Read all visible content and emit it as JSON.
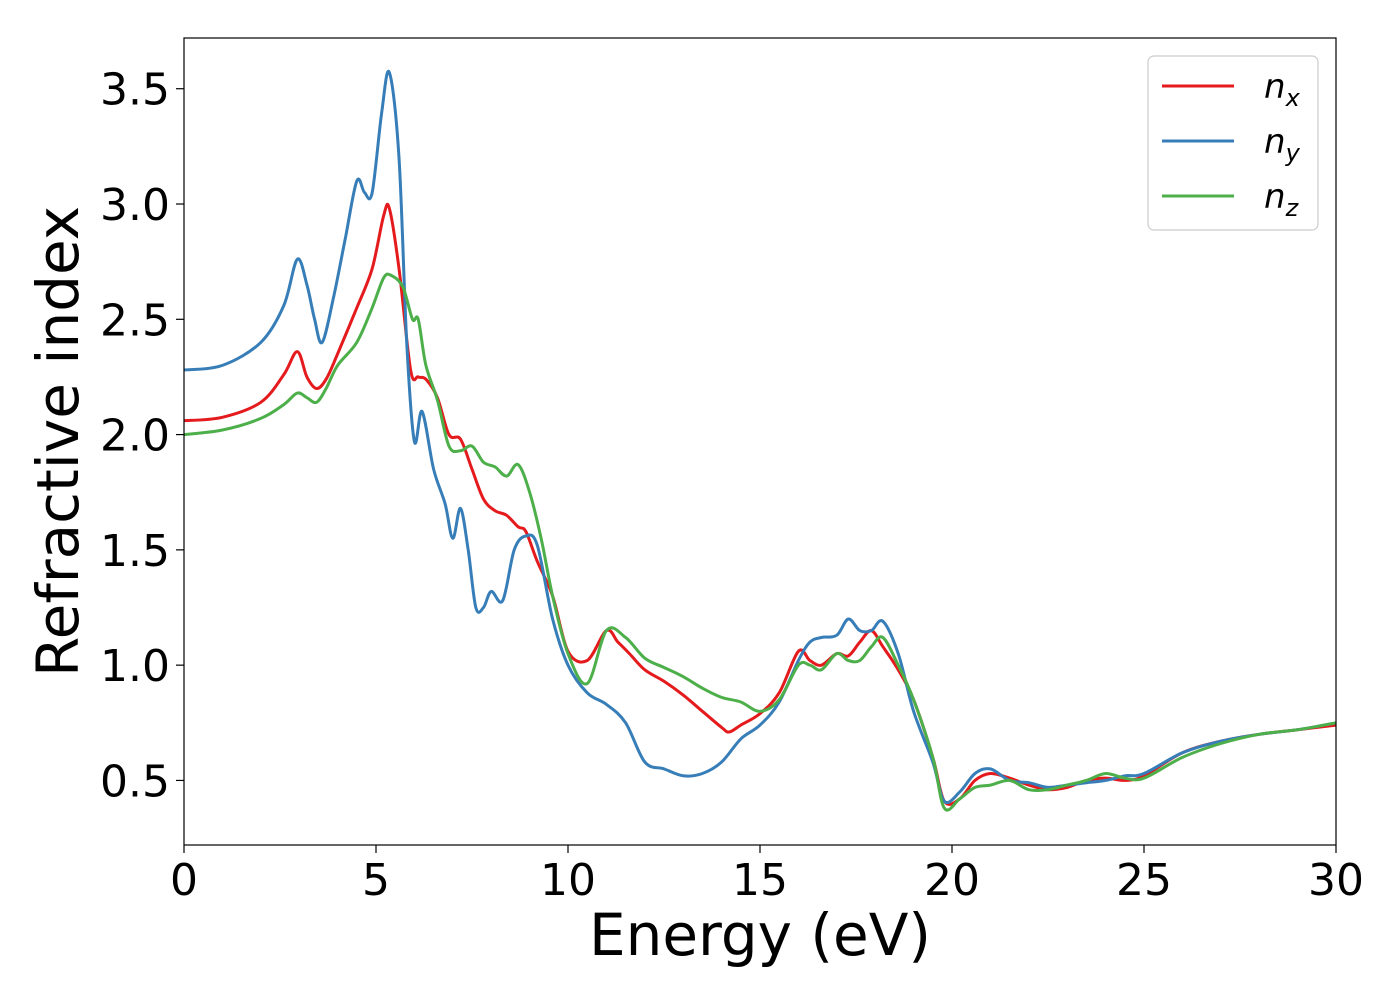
{
  "chart_data": {
    "type": "line",
    "title": "",
    "xlabel": "Energy (eV)",
    "ylabel": "Refractive index",
    "xlim": [
      0,
      30
    ],
    "ylim": [
      0.22,
      3.72
    ],
    "xticks": [
      0,
      5,
      10,
      15,
      20,
      25,
      30
    ],
    "xtick_labels": [
      "0",
      "5",
      "10",
      "15",
      "20",
      "25",
      "30"
    ],
    "yticks": [
      0.5,
      1.0,
      1.5,
      2.0,
      2.5,
      3.0,
      3.5
    ],
    "ytick_labels": [
      "0.5",
      "1.0",
      "1.5",
      "2.0",
      "2.5",
      "3.0",
      "3.5"
    ],
    "grid": false,
    "legend_position": "top-right",
    "series": [
      {
        "name": "n",
        "subscript": "x",
        "color": "#e41a1c",
        "x": [
          0,
          1,
          2,
          2.6,
          2.95,
          3.2,
          3.45,
          3.7,
          4.0,
          4.5,
          4.9,
          5.2,
          5.35,
          5.6,
          5.9,
          6.1,
          6.3,
          6.6,
          6.9,
          7.2,
          7.5,
          7.8,
          8.1,
          8.4,
          8.7,
          8.9,
          9.2,
          9.6,
          10,
          10.5,
          11,
          11.3,
          11.6,
          12,
          12.5,
          13,
          13.5,
          14,
          14.2,
          14.5,
          15,
          15.5,
          16,
          16.3,
          16.6,
          17,
          17.3,
          17.6,
          17.9,
          18.2,
          18.6,
          19,
          19.5,
          19.8,
          20.2,
          20.6,
          21,
          21.5,
          22,
          22.5,
          23,
          23.5,
          24,
          24.5,
          25,
          26,
          27,
          28,
          29,
          30
        ],
        "y": [
          2.06,
          2.075,
          2.14,
          2.26,
          2.36,
          2.25,
          2.2,
          2.24,
          2.35,
          2.55,
          2.72,
          2.95,
          2.98,
          2.72,
          2.28,
          2.25,
          2.24,
          2.16,
          2.0,
          1.98,
          1.85,
          1.72,
          1.67,
          1.65,
          1.6,
          1.58,
          1.45,
          1.3,
          1.06,
          1.02,
          1.15,
          1.1,
          1.05,
          0.98,
          0.93,
          0.87,
          0.8,
          0.73,
          0.71,
          0.74,
          0.79,
          0.88,
          1.06,
          1.02,
          1.0,
          1.05,
          1.04,
          1.1,
          1.15,
          1.08,
          0.98,
          0.85,
          0.6,
          0.41,
          0.42,
          0.5,
          0.53,
          0.51,
          0.48,
          0.46,
          0.47,
          0.5,
          0.51,
          0.5,
          0.52,
          0.62,
          0.67,
          0.7,
          0.72,
          0.74
        ]
      },
      {
        "name": "n",
        "subscript": "y",
        "color": "#377eb8",
        "x": [
          0,
          1,
          2,
          2.6,
          2.95,
          3.2,
          3.4,
          3.6,
          3.9,
          4.2,
          4.5,
          4.7,
          4.9,
          5.15,
          5.35,
          5.6,
          5.8,
          6.0,
          6.2,
          6.5,
          6.8,
          7.0,
          7.2,
          7.4,
          7.6,
          7.8,
          8.0,
          8.3,
          8.6,
          8.9,
          9.2,
          9.6,
          10,
          10.5,
          11,
          11.5,
          12,
          12.5,
          13,
          13.5,
          14,
          14.5,
          15,
          15.5,
          16,
          16.3,
          16.6,
          17,
          17.3,
          17.6,
          17.9,
          18.2,
          18.6,
          19,
          19.5,
          19.8,
          20.2,
          20.6,
          21,
          21.5,
          22,
          22.5,
          23,
          23.5,
          24,
          24.5,
          25,
          26,
          27,
          28,
          29,
          30
        ],
        "y": [
          2.28,
          2.3,
          2.4,
          2.56,
          2.76,
          2.65,
          2.5,
          2.4,
          2.6,
          2.85,
          3.1,
          3.05,
          3.05,
          3.4,
          3.57,
          3.2,
          2.4,
          1.97,
          2.1,
          1.85,
          1.7,
          1.55,
          1.68,
          1.5,
          1.25,
          1.25,
          1.32,
          1.28,
          1.5,
          1.56,
          1.52,
          1.2,
          1.0,
          0.88,
          0.83,
          0.75,
          0.58,
          0.55,
          0.52,
          0.53,
          0.58,
          0.68,
          0.74,
          0.84,
          1.02,
          1.1,
          1.12,
          1.13,
          1.2,
          1.15,
          1.15,
          1.19,
          1.05,
          0.8,
          0.58,
          0.41,
          0.45,
          0.53,
          0.55,
          0.5,
          0.49,
          0.47,
          0.48,
          0.49,
          0.5,
          0.52,
          0.53,
          0.62,
          0.67,
          0.7,
          0.72,
          0.75
        ]
      },
      {
        "name": "n",
        "subscript": "z",
        "color": "#4daf4a",
        "x": [
          0,
          1,
          2,
          2.6,
          2.95,
          3.2,
          3.45,
          3.7,
          4.0,
          4.5,
          4.9,
          5.2,
          5.4,
          5.7,
          5.95,
          6.1,
          6.3,
          6.6,
          6.9,
          7.2,
          7.5,
          7.8,
          8.1,
          8.4,
          8.7,
          9.0,
          9.3,
          9.6,
          10,
          10.5,
          11,
          11.5,
          12,
          12.5,
          13,
          13.5,
          14,
          14.5,
          15,
          15.5,
          16,
          16.3,
          16.6,
          17,
          17.3,
          17.6,
          17.9,
          18.2,
          18.6,
          19,
          19.5,
          19.8,
          20.2,
          20.6,
          21,
          21.5,
          22,
          22.5,
          23,
          23.5,
          24,
          24.5,
          25,
          26,
          27,
          28,
          29,
          30
        ],
        "y": [
          2.0,
          2.02,
          2.07,
          2.13,
          2.18,
          2.16,
          2.14,
          2.2,
          2.3,
          2.4,
          2.55,
          2.68,
          2.69,
          2.64,
          2.5,
          2.5,
          2.3,
          2.15,
          1.95,
          1.93,
          1.95,
          1.88,
          1.86,
          1.82,
          1.87,
          1.75,
          1.55,
          1.3,
          1.05,
          0.92,
          1.15,
          1.12,
          1.03,
          0.99,
          0.95,
          0.9,
          0.86,
          0.84,
          0.8,
          0.85,
          1.0,
          1.0,
          0.98,
          1.05,
          1.02,
          1.02,
          1.08,
          1.12,
          1.0,
          0.85,
          0.6,
          0.38,
          0.42,
          0.47,
          0.48,
          0.5,
          0.46,
          0.46,
          0.48,
          0.5,
          0.53,
          0.51,
          0.51,
          0.6,
          0.66,
          0.7,
          0.72,
          0.75
        ]
      }
    ]
  }
}
